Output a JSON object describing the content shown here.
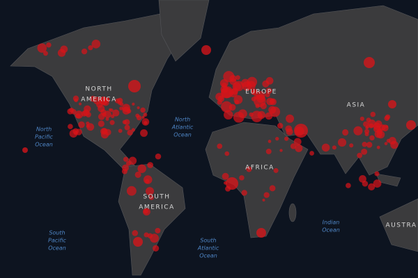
{
  "continents": [
    {
      "lines": [
        "NORTH",
        "AMERICA"
      ]
    },
    {
      "lines": [
        "EUROPE"
      ]
    },
    {
      "lines": [
        "ASIA"
      ]
    },
    {
      "lines": [
        "AFRICA"
      ]
    },
    {
      "lines": [
        "SOUTH",
        "AMERICA"
      ]
    },
    {
      "lines": [
        "AUSTRA"
      ]
    }
  ],
  "oceans": [
    {
      "lines": [
        "North",
        "Pacific",
        "Ocean"
      ]
    },
    {
      "lines": [
        "North",
        "Atlantic",
        "Ocean"
      ]
    },
    {
      "lines": [
        "South",
        "Pacific",
        "Ocean"
      ]
    },
    {
      "lines": [
        "South",
        "Atlantic",
        "Ocean"
      ]
    },
    {
      "lines": [
        "Indian",
        "Ocean"
      ]
    }
  ]
}
